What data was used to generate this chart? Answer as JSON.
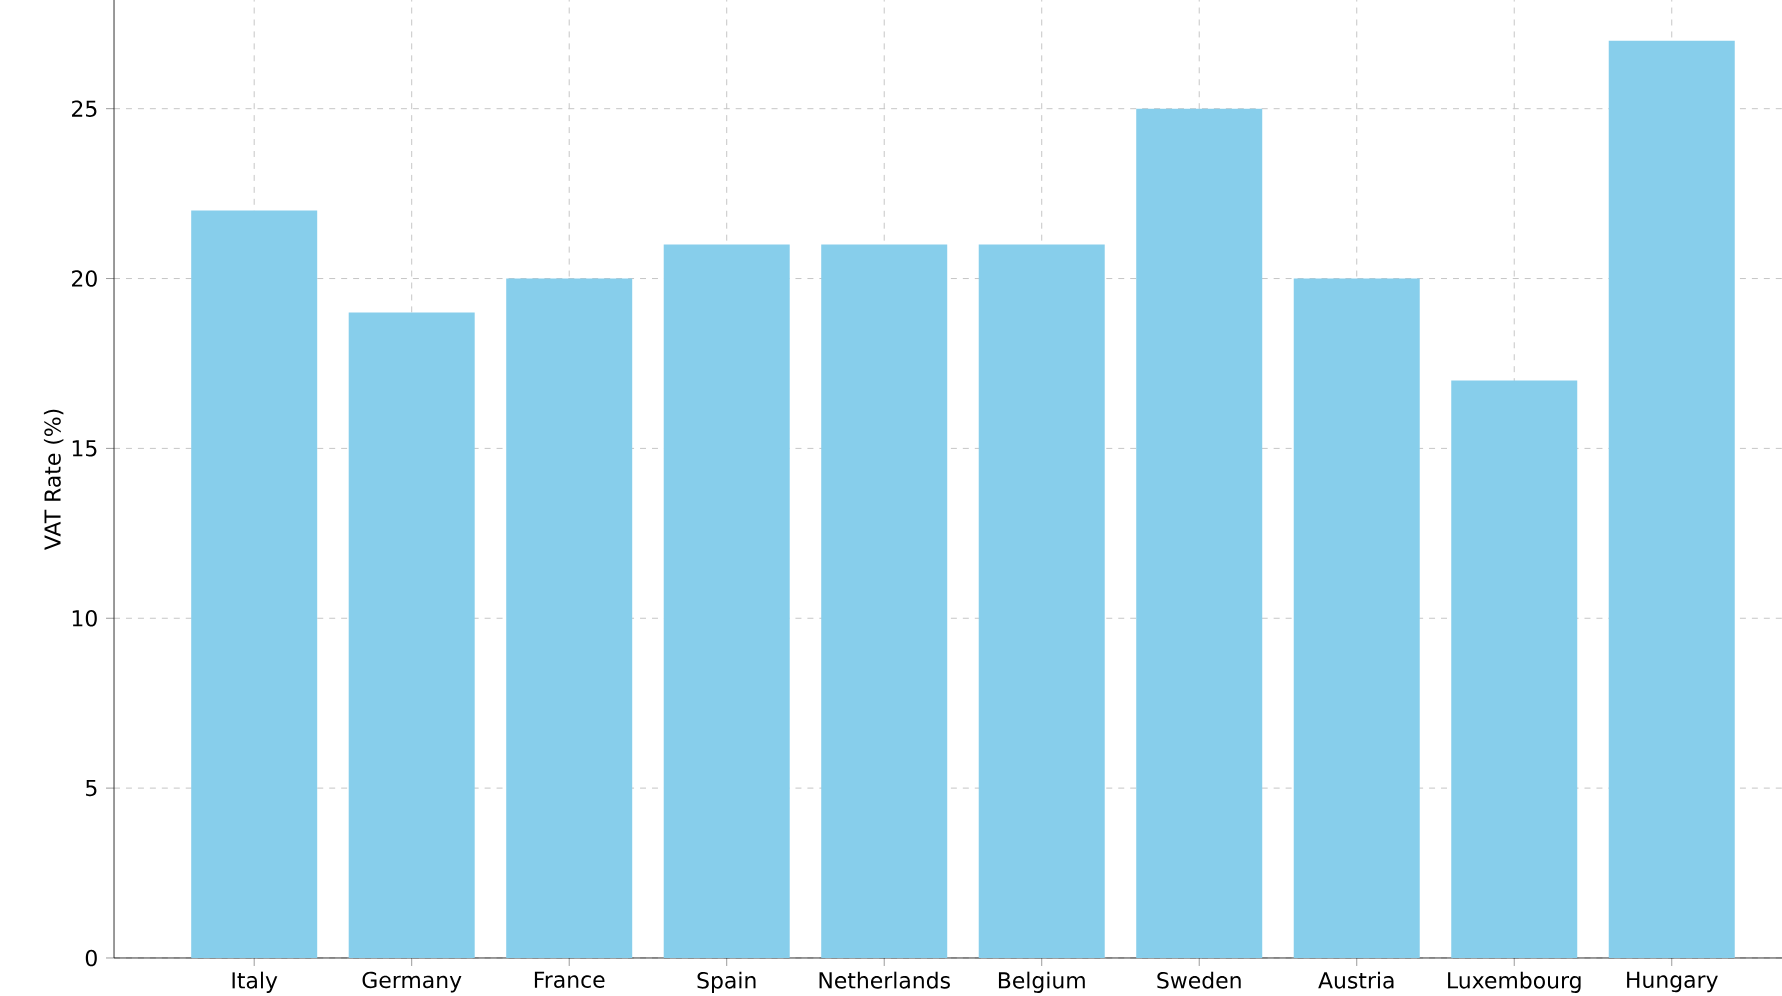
{
  "chart_data": {
    "type": "bar",
    "ylabel": "VAT Rate (%)",
    "categories": [
      "Italy",
      "Germany",
      "France",
      "Spain",
      "Netherlands",
      "Belgium",
      "Sweden",
      "Austria",
      "Luxembourg",
      "Hungary"
    ],
    "values": [
      22,
      19,
      20,
      21,
      21,
      21,
      25,
      20,
      17,
      27
    ],
    "color": "#87ceeb",
    "ylim": [
      0,
      28.2
    ],
    "yticks": [
      0,
      5,
      10,
      15,
      20,
      25
    ],
    "grid": true
  }
}
